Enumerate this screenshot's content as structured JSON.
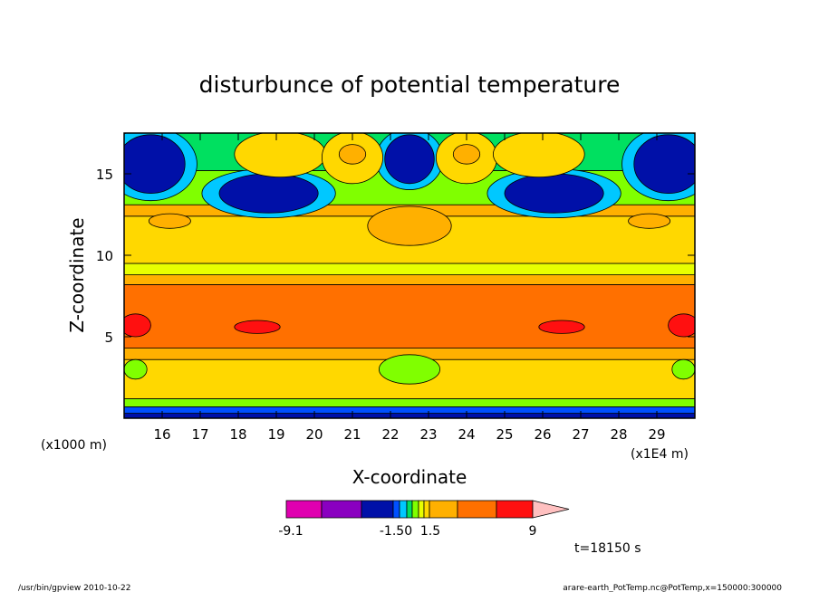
{
  "chart_data": {
    "type": "heatmap",
    "title": "disturbunce of potential temperature",
    "xlabel": "X-coordinate",
    "ylabel": "Z-coordinate",
    "x_unit": "(x1E4 m)",
    "y_unit": "(x1000 m)",
    "xlim": [
      15,
      30
    ],
    "ylim": [
      0,
      17.5
    ],
    "x_ticks": [
      16,
      17,
      18,
      19,
      20,
      21,
      22,
      23,
      24,
      25,
      26,
      27,
      28,
      29
    ],
    "y_ticks": [
      5,
      10,
      15
    ],
    "colorbar": {
      "tick_labels": [
        "-9.1",
        "-1.50",
        "1.5",
        "9"
      ],
      "colors": [
        "#e000b0",
        "#8a00c0",
        "#0010a8",
        "#0050ff",
        "#00c8ff",
        "#00e060",
        "#80ff00",
        "#e8ff00",
        "#ffd800",
        "#ffb000",
        "#ff7000",
        "#ff1010",
        "#ff8078",
        "#ffc0c0"
      ]
    },
    "bands": [
      {
        "z_bottom": 0.0,
        "z_top": 0.3,
        "value": -3
      },
      {
        "z_bottom": 0.3,
        "z_top": 0.7,
        "value": -1.5
      },
      {
        "z_bottom": 0.7,
        "z_top": 1.2,
        "value": 0.2
      },
      {
        "z_bottom": 1.2,
        "z_top": 3.6,
        "value": 1.5
      },
      {
        "z_bottom": 3.6,
        "z_top": 4.3,
        "value": 2.5
      },
      {
        "z_bottom": 4.3,
        "z_top": 8.2,
        "value": 4
      },
      {
        "z_bottom": 8.2,
        "z_top": 8.8,
        "value": 2.5
      },
      {
        "z_bottom": 8.8,
        "z_top": 9.5,
        "value": 0.8
      },
      {
        "z_bottom": 9.5,
        "z_top": 12.4,
        "value": 1.5
      },
      {
        "z_bottom": 12.4,
        "z_top": 13.1,
        "value": 2.5
      },
      {
        "z_bottom": 13.1,
        "z_top": 15.2,
        "value": 0.2
      },
      {
        "z_bottom": 15.2,
        "z_top": 17.5,
        "value": -0.6
      }
    ],
    "features": [
      {
        "x": 15.7,
        "z": 15.6,
        "rx": 0.9,
        "rz": 1.8,
        "value": -3
      },
      {
        "x": 29.3,
        "z": 15.6,
        "rx": 0.9,
        "rz": 1.8,
        "value": -3
      },
      {
        "x": 18.8,
        "z": 13.8,
        "rx": 1.3,
        "rz": 1.2,
        "value": -3
      },
      {
        "x": 26.3,
        "z": 13.8,
        "rx": 1.3,
        "rz": 1.2,
        "value": -3
      },
      {
        "x": 22.5,
        "z": 15.9,
        "rx": 0.65,
        "rz": 1.5,
        "value": -3
      },
      {
        "x": 19.1,
        "z": 16.2,
        "rx": 1.2,
        "rz": 1.4,
        "value": 1.5
      },
      {
        "x": 21.0,
        "z": 16.0,
        "rx": 0.8,
        "rz": 1.6,
        "value": 1.5
      },
      {
        "x": 24.0,
        "z": 16.0,
        "rx": 0.8,
        "rz": 1.6,
        "value": 1.5
      },
      {
        "x": 25.9,
        "z": 16.2,
        "rx": 1.2,
        "rz": 1.4,
        "value": 1.5
      },
      {
        "x": 21.0,
        "z": 16.2,
        "rx": 0.35,
        "rz": 0.6,
        "value": 2.5
      },
      {
        "x": 24.0,
        "z": 16.2,
        "rx": 0.35,
        "rz": 0.6,
        "value": 2.5
      },
      {
        "x": 22.5,
        "z": 11.8,
        "rx": 1.1,
        "rz": 1.2,
        "value": 2.5
      },
      {
        "x": 16.2,
        "z": 12.1,
        "rx": 0.55,
        "rz": 0.45,
        "value": 2.5
      },
      {
        "x": 28.8,
        "z": 12.1,
        "rx": 0.55,
        "rz": 0.45,
        "value": 2.5
      },
      {
        "x": 15.3,
        "z": 5.7,
        "rx": 0.4,
        "rz": 0.7,
        "value": 9
      },
      {
        "x": 29.7,
        "z": 5.7,
        "rx": 0.4,
        "rz": 0.7,
        "value": 9
      },
      {
        "x": 18.5,
        "z": 5.6,
        "rx": 0.6,
        "rz": 0.4,
        "value": 9
      },
      {
        "x": 26.5,
        "z": 5.6,
        "rx": 0.6,
        "rz": 0.4,
        "value": 9
      },
      {
        "x": 22.5,
        "z": 3.0,
        "rx": 0.8,
        "rz": 0.9,
        "value": 0.2
      },
      {
        "x": 15.3,
        "z": 3.0,
        "rx": 0.3,
        "rz": 0.6,
        "value": 0.2
      },
      {
        "x": 29.7,
        "z": 3.0,
        "rx": 0.3,
        "rz": 0.6,
        "value": 0.2
      }
    ],
    "timestamp": "t=18150 s"
  },
  "footer": {
    "left": "/usr/bin/gpview   2010-10-22",
    "right": "arare-earth_PotTemp.nc@PotTemp,x=150000:300000"
  }
}
